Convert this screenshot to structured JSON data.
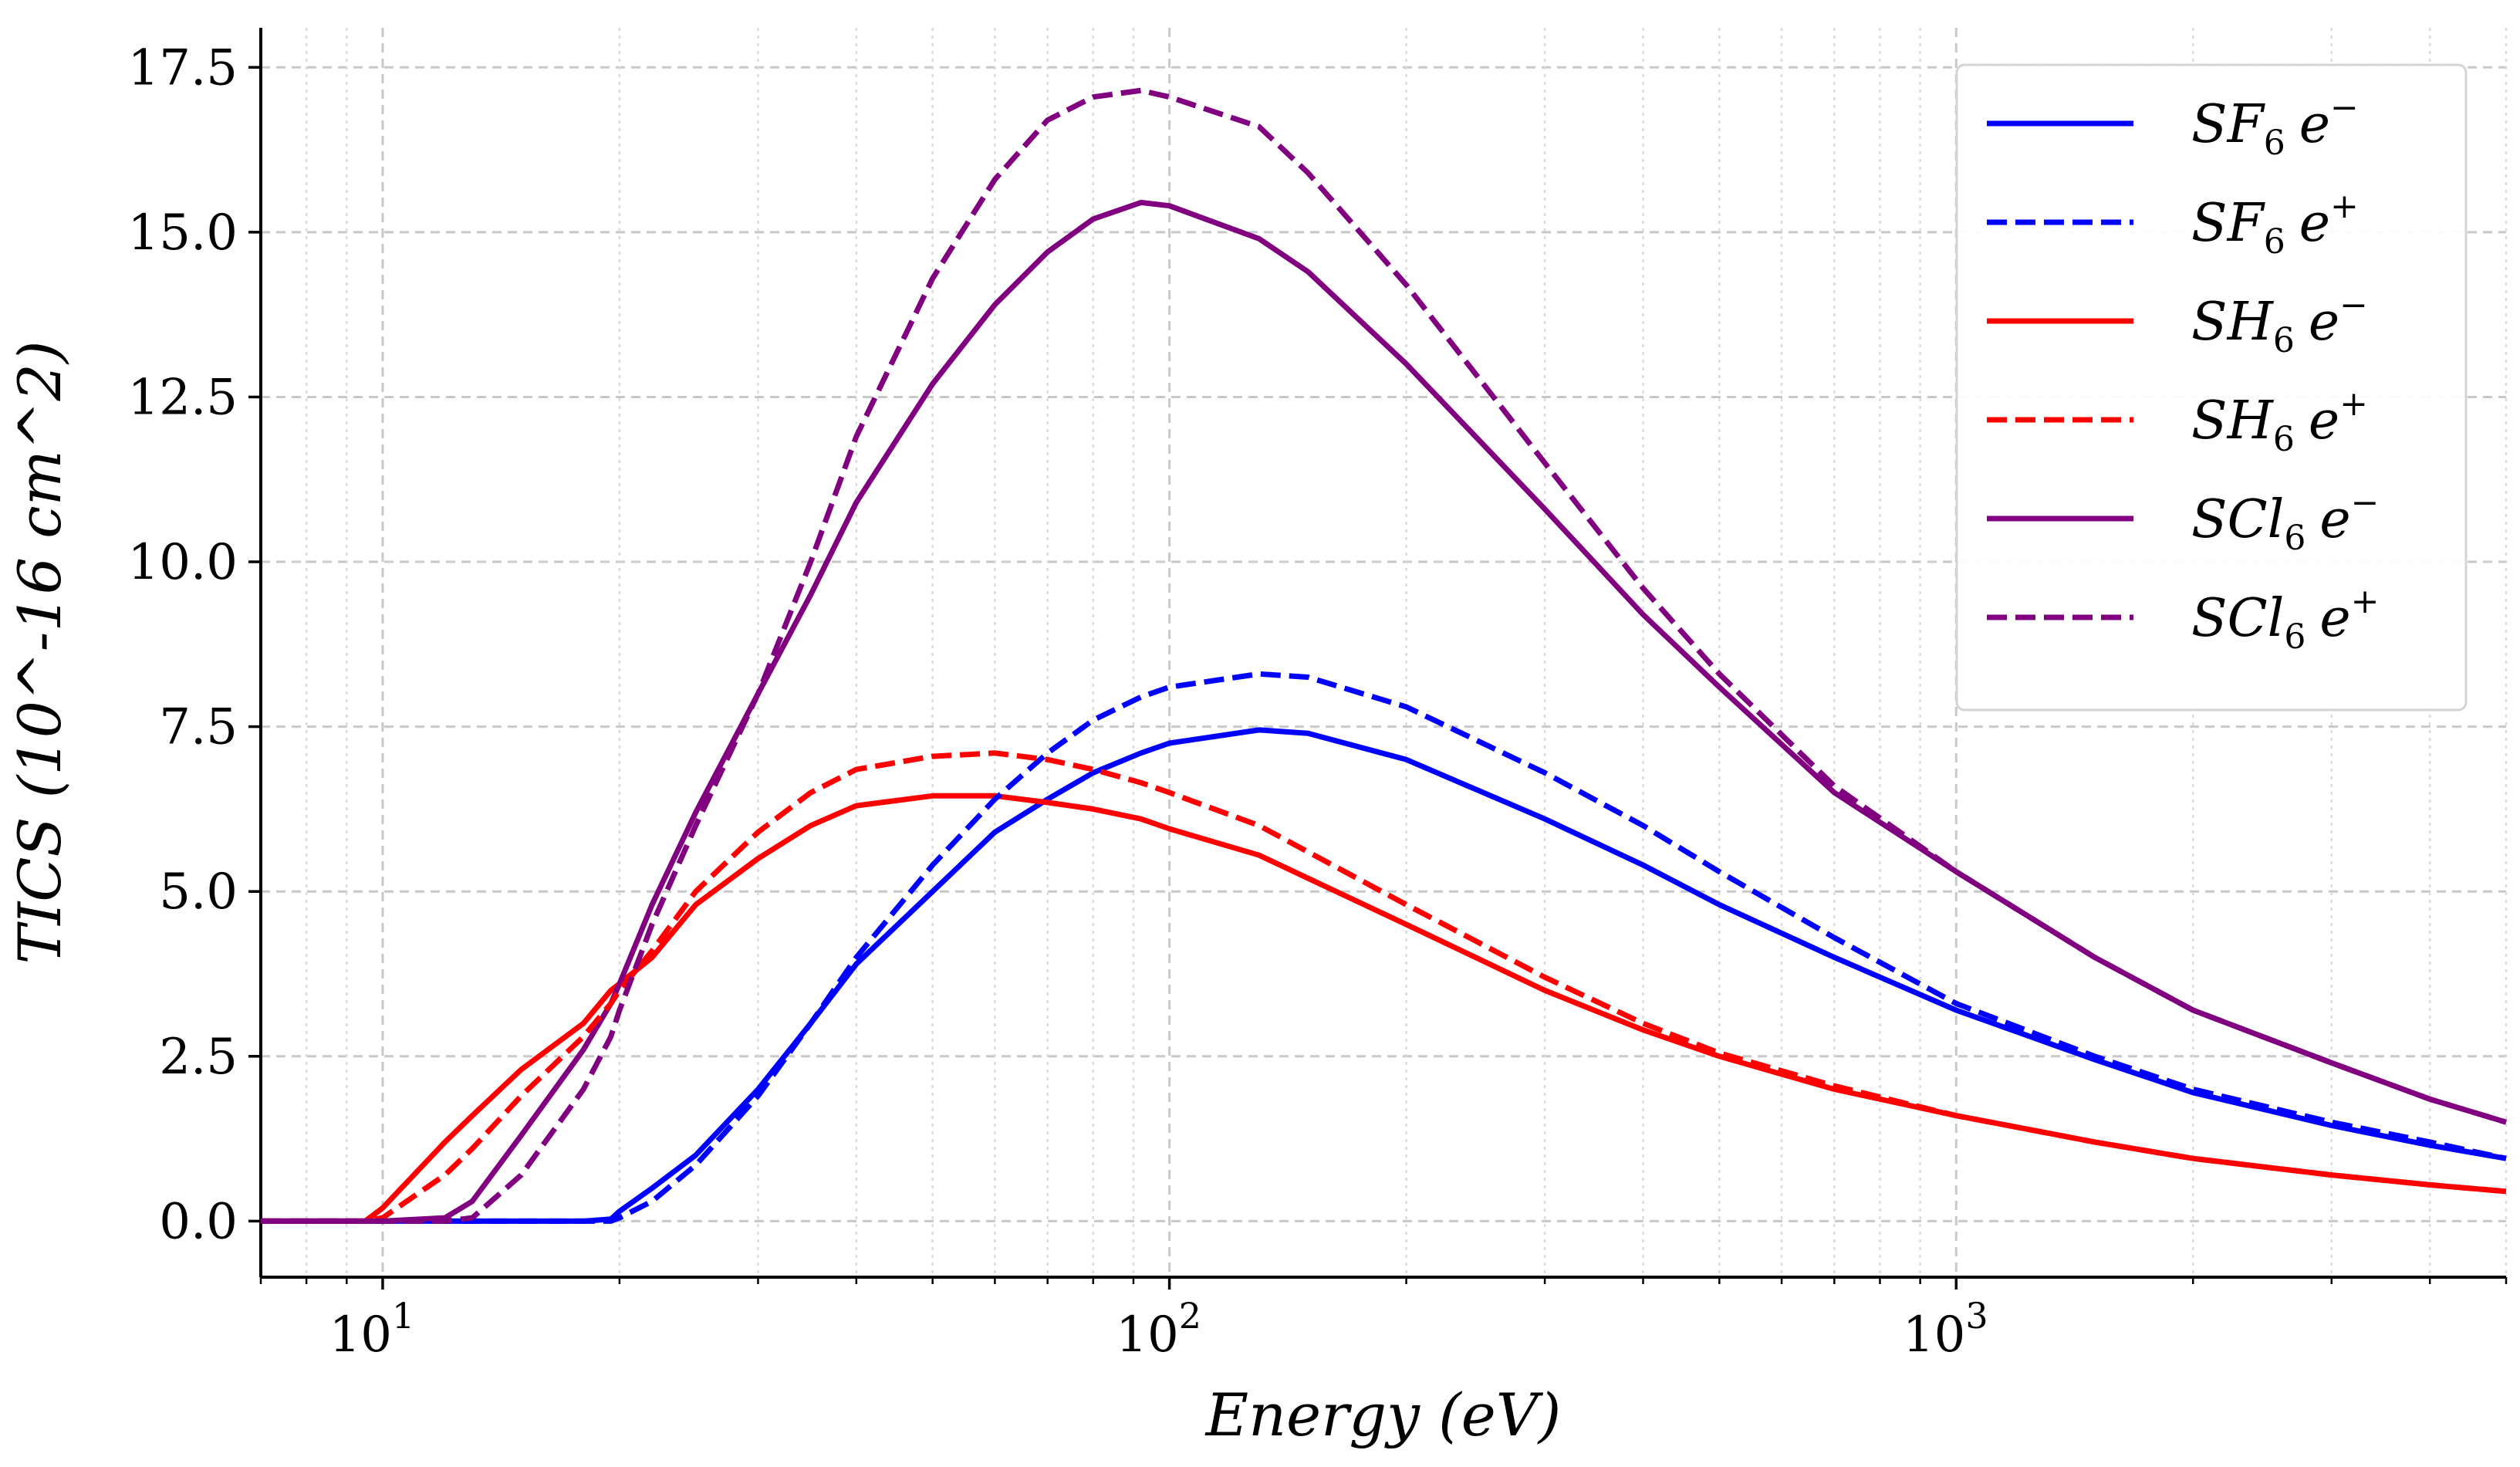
{
  "chart_data": {
    "type": "line",
    "title": "",
    "xlabel": "Energy (eV)",
    "ylabel": "TICS (10^-16 cm^2)",
    "xscale": "log",
    "xlim": [
      7,
      5000
    ],
    "ylim": [
      -0.85,
      18.1
    ],
    "x_ticks": [
      10,
      100,
      1000
    ],
    "x_tick_labels": [
      "10",
      "1",
      "10",
      "2",
      "10",
      "3"
    ],
    "y_ticks": [
      0.0,
      2.5,
      5.0,
      7.5,
      10.0,
      12.5,
      15.0,
      17.5
    ],
    "y_tick_labels": [
      "0.0",
      "2.5",
      "5.0",
      "7.5",
      "10.0",
      "12.5",
      "15.0",
      "17.5"
    ],
    "grid": true,
    "legend_position": "top-right",
    "x": [
      7,
      9.5,
      10,
      12,
      13,
      15,
      18,
      19.5,
      20,
      22,
      25,
      30,
      35,
      40,
      50,
      60,
      70,
      80,
      92,
      100,
      130,
      150,
      200,
      300,
      400,
      500,
      700,
      1000,
      1500,
      2000,
      3000,
      4000,
      5000
    ],
    "series": [
      {
        "name": "SF6 e-",
        "formula": "SF",
        "subscript": "6",
        "charge": "e",
        "sign": "−",
        "color": "#0000ff",
        "dash": "solid",
        "values": [
          0,
          0,
          0,
          0,
          0,
          0,
          0,
          0.03,
          0.15,
          0.5,
          1.0,
          2.0,
          3.0,
          3.9,
          5.0,
          5.9,
          6.4,
          6.8,
          7.1,
          7.25,
          7.45,
          7.4,
          7.0,
          6.1,
          5.4,
          4.8,
          4.0,
          3.2,
          2.45,
          1.95,
          1.45,
          1.15,
          0.95
        ]
      },
      {
        "name": "SF6 e+",
        "formula": "SF",
        "subscript": "6",
        "charge": "e",
        "sign": "+",
        "color": "#0000ff",
        "dash": "dashed",
        "values": [
          0,
          0,
          0,
          0,
          0,
          0,
          0,
          0,
          0.05,
          0.3,
          0.85,
          1.9,
          3.0,
          4.0,
          5.4,
          6.4,
          7.1,
          7.6,
          7.95,
          8.1,
          8.3,
          8.25,
          7.8,
          6.8,
          6.0,
          5.3,
          4.3,
          3.3,
          2.5,
          2.0,
          1.5,
          1.2,
          0.95
        ]
      },
      {
        "name": "SH6 e-",
        "formula": "SH",
        "subscript": "6",
        "charge": "e",
        "sign": "−",
        "color": "#ff0000",
        "dash": "solid",
        "values": [
          0,
          0,
          0.2,
          1.2,
          1.6,
          2.3,
          3.0,
          3.5,
          3.6,
          4.0,
          4.8,
          5.5,
          6.0,
          6.3,
          6.45,
          6.45,
          6.35,
          6.25,
          6.1,
          5.95,
          5.55,
          5.2,
          4.5,
          3.5,
          2.9,
          2.5,
          2.0,
          1.6,
          1.2,
          0.95,
          0.7,
          0.55,
          0.45
        ]
      },
      {
        "name": "SH6 e+",
        "formula": "SH",
        "subscript": "6",
        "charge": "e",
        "sign": "+",
        "color": "#ff0000",
        "dash": "dashed",
        "values": [
          0,
          0,
          0.05,
          0.7,
          1.1,
          1.9,
          2.8,
          3.3,
          3.5,
          4.1,
          5.0,
          5.9,
          6.5,
          6.85,
          7.05,
          7.1,
          7.0,
          6.85,
          6.65,
          6.5,
          6.0,
          5.6,
          4.8,
          3.7,
          3.0,
          2.55,
          2.05,
          1.6,
          1.2,
          0.95,
          0.7,
          0.55,
          0.45
        ]
      },
      {
        "name": "SCl6 e-",
        "formula": "SCl",
        "subscript": "6",
        "charge": "e",
        "sign": "−",
        "color": "#800080",
        "dash": "solid",
        "values": [
          0,
          0,
          0,
          0.05,
          0.3,
          1.3,
          2.6,
          3.3,
          3.6,
          4.8,
          6.2,
          8.0,
          9.5,
          10.9,
          12.7,
          13.9,
          14.7,
          15.2,
          15.45,
          15.4,
          14.9,
          14.4,
          13.0,
          10.8,
          9.2,
          8.1,
          6.5,
          5.3,
          4.0,
          3.2,
          2.4,
          1.85,
          1.5
        ]
      },
      {
        "name": "SCl6 e+",
        "formula": "SCl",
        "subscript": "6",
        "charge": "e",
        "sign": "+",
        "color": "#800080",
        "dash": "dashed",
        "values": [
          0,
          0,
          0,
          0,
          0.05,
          0.7,
          2.0,
          2.8,
          3.2,
          4.5,
          6.0,
          8.0,
          10.0,
          11.9,
          14.3,
          15.8,
          16.7,
          17.05,
          17.15,
          17.05,
          16.6,
          15.9,
          14.2,
          11.5,
          9.6,
          8.3,
          6.6,
          5.3,
          4.0,
          3.2,
          2.4,
          1.85,
          1.5
        ]
      }
    ]
  }
}
